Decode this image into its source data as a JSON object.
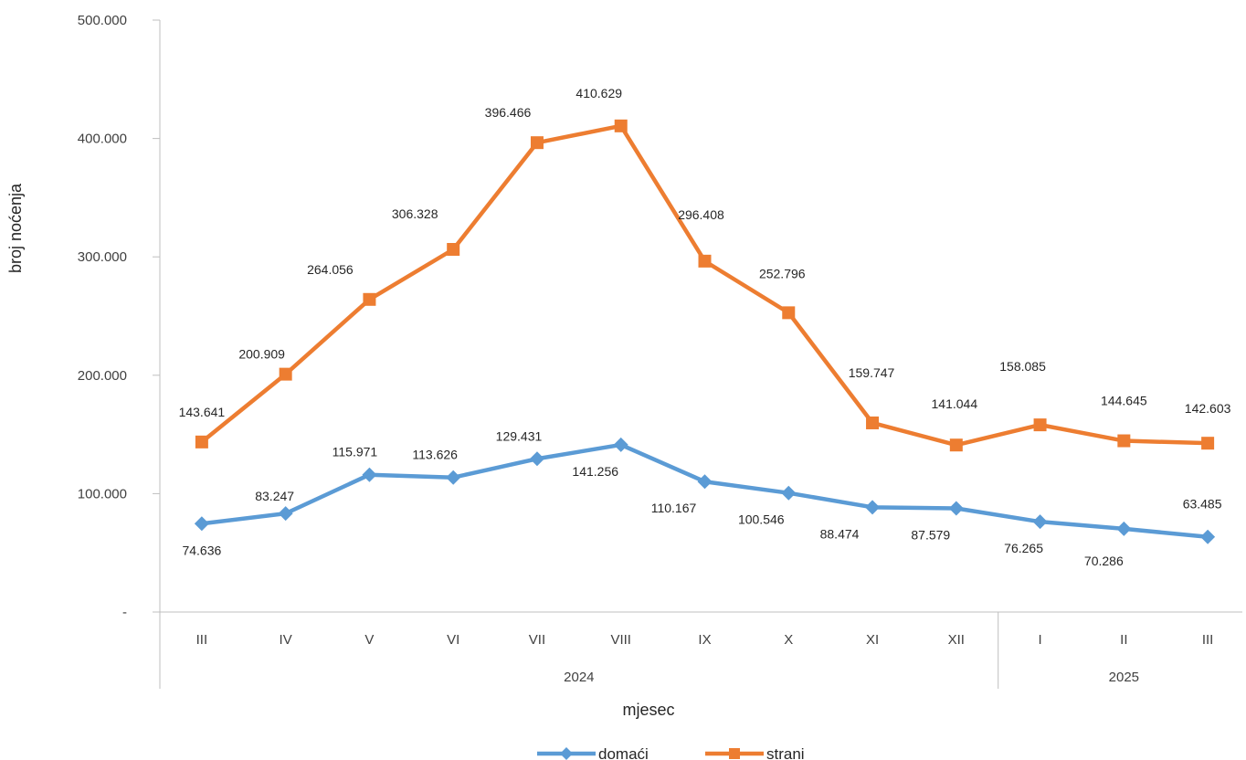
{
  "chart_data": {
    "type": "line",
    "title": "",
    "xlabel": "mjesec",
    "ylabel": "broj noćenja",
    "ylim": [
      0,
      500000
    ],
    "y_ticks": [
      {
        "value": 0,
        "label": "-"
      },
      {
        "value": 100000,
        "label": "100.000"
      },
      {
        "value": 200000,
        "label": "200.000"
      },
      {
        "value": 300000,
        "label": "300.000"
      },
      {
        "value": 400000,
        "label": "400.000"
      },
      {
        "value": 500000,
        "label": "500.000"
      }
    ],
    "categories": [
      "III",
      "IV",
      "V",
      "VI",
      "VII",
      "VIII",
      "IX",
      "X",
      "XI",
      "XII",
      "I",
      "II",
      "III"
    ],
    "year_groups": [
      {
        "label": "2024",
        "count": 10
      },
      {
        "label": "2025",
        "count": 3
      }
    ],
    "grid": false,
    "legend_position": "bottom",
    "series": [
      {
        "name": "domaći",
        "color": "#5B9BD5",
        "marker": "diamond",
        "values": [
          74636,
          83247,
          115971,
          113626,
          129431,
          141256,
          110167,
          100546,
          88474,
          87579,
          76265,
          70286,
          63485
        ],
        "labels": [
          "74.636",
          "83.247",
          "115.971",
          "113.626",
          "129.431",
          "141.256",
          "110.167",
          "100.546",
          "88.474",
          "87.579",
          "76.265",
          "70.286",
          "63.485"
        ]
      },
      {
        "name": "strani",
        "color": "#ED7D31",
        "marker": "square",
        "values": [
          143641,
          200909,
          264056,
          306328,
          396466,
          410629,
          296408,
          252796,
          159747,
          141044,
          158085,
          144645,
          142603
        ],
        "labels": [
          "143.641",
          "200.909",
          "264.056",
          "306.328",
          "396.466",
          "410.629",
          "296.408",
          "252.796",
          "159.747",
          "141.044",
          "158.085",
          "144.645",
          "142.603"
        ]
      }
    ]
  }
}
